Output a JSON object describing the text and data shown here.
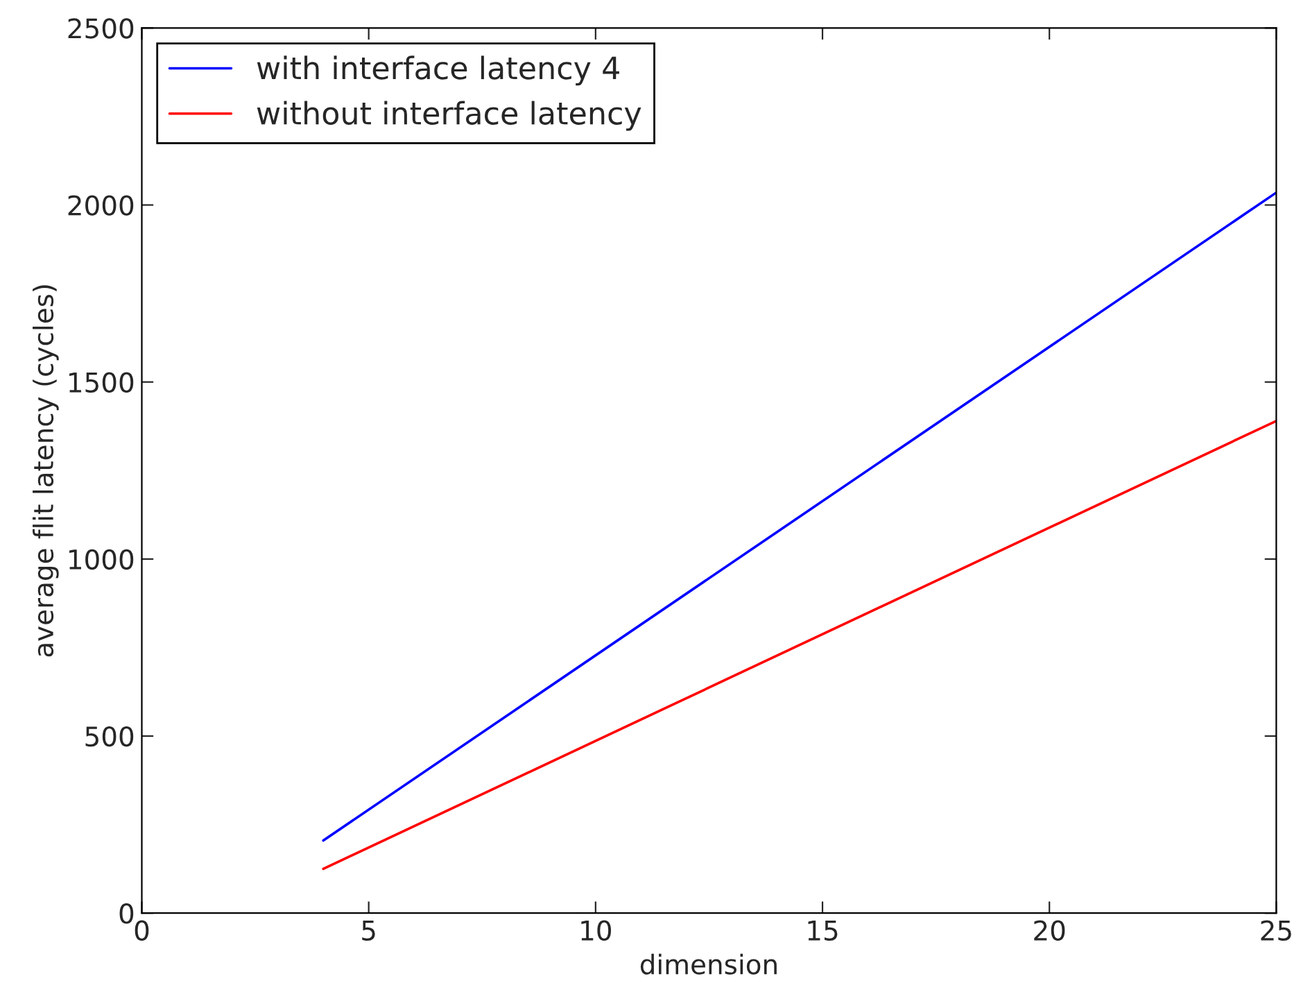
{
  "chart_data": {
    "type": "line",
    "xlabel": "dimension",
    "ylabel": "average flit latency (cycles)",
    "x": [
      4,
      25
    ],
    "series": [
      {
        "name": "with interface latency 4",
        "color": "#0000ff",
        "values": [
          205,
          2035
        ]
      },
      {
        "name": "without interface latency",
        "color": "#ff0000",
        "values": [
          125,
          1390
        ]
      }
    ],
    "xlim": [
      0,
      25
    ],
    "xticks": [
      0,
      5,
      10,
      15,
      20,
      25
    ],
    "ylim": [
      0,
      2500
    ],
    "yticks": [
      0,
      500,
      1000,
      1500,
      2000,
      2500
    ],
    "grid": false,
    "legend": "top left",
    "marker": "none",
    "line_style": "solid"
  }
}
